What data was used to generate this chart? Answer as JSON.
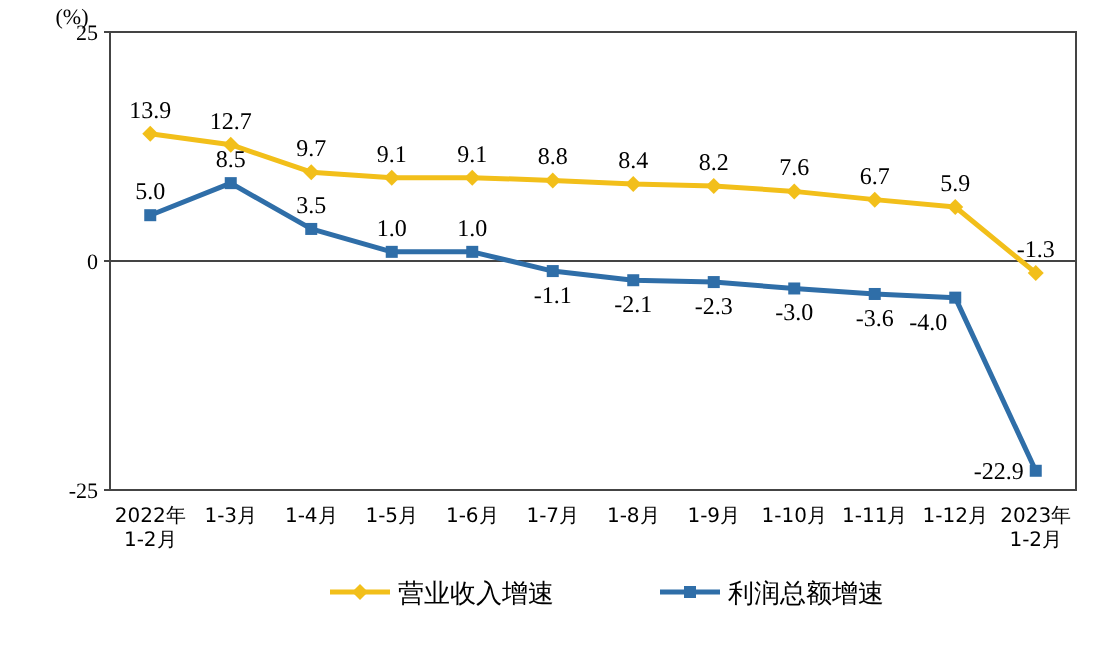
{
  "chart_data": {
    "type": "line",
    "ylabel": "(%)",
    "categories": [
      "2022年\n1-2月",
      "1-3月",
      "1-4月",
      "1-5月",
      "1-6月",
      "1-7月",
      "1-8月",
      "1-9月",
      "1-10月",
      "1-11月",
      "1-12月",
      "2023年\n1-2月"
    ],
    "series": [
      {
        "name": "营业收入增速",
        "color": "#f2bf1a",
        "marker": "diamond",
        "values": [
          13.9,
          12.7,
          9.7,
          9.1,
          9.1,
          8.8,
          8.4,
          8.2,
          7.6,
          6.7,
          5.9,
          -1.3
        ],
        "value_labels": [
          "13.9",
          "12.7",
          "9.7",
          "9.1",
          "9.1",
          "8.8",
          "8.4",
          "8.2",
          "7.6",
          "6.7",
          "5.9",
          "-1.3"
        ]
      },
      {
        "name": "利润总额增速",
        "color": "#2f6ea8",
        "marker": "square",
        "values": [
          5.0,
          8.5,
          3.5,
          1.0,
          1.0,
          -1.1,
          -2.1,
          -2.3,
          -3.0,
          -3.6,
          -4.0,
          -22.9
        ],
        "value_labels": [
          "5.0",
          "8.5",
          "3.5",
          "1.0",
          "1.0",
          "-1.1",
          "-2.1",
          "-2.3",
          "-3.0",
          "-3.6",
          "-4.0",
          "-22.9"
        ]
      }
    ],
    "ylim": [
      -25,
      25
    ],
    "yticks": [
      {
        "value": 25,
        "label": "25"
      },
      0,
      {
        "value": -25,
        "label": "-25"
      }
    ],
    "grid": "y",
    "legend": "bottom"
  }
}
